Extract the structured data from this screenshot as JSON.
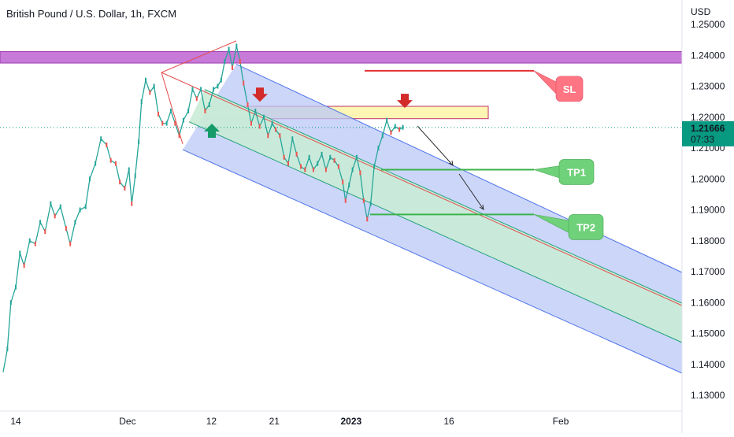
{
  "header": {
    "title": "British Pound / U.S. Dollar, 1h, FXCM"
  },
  "colors": {
    "up": "#26a69a",
    "down": "#ef5350",
    "channel_fill": "#b9c8f7",
    "inner_fill": "#c9ecd6",
    "resistance": "#c77ad8",
    "supply": "#fbf3a6",
    "sl": "#ff7583",
    "tp": "#6fd17a",
    "price_tag": "#089981"
  },
  "chart_data": {
    "type": "line",
    "title": "British Pound / U.S. Dollar, 1h, FXCM",
    "y_unit": "USD",
    "ylim": [
      1.1275,
      1.2525
    ],
    "yticks": [
      "1.25000",
      "1.24000",
      "1.23000",
      "1.22000",
      "1.21000",
      "1.20000",
      "1.19000",
      "1.18000",
      "1.17000",
      "1.16000",
      "1.15000",
      "1.14000",
      "1.13000"
    ],
    "xticks": [
      "14",
      "Dec",
      "12",
      "21",
      "2023",
      "16",
      "Feb"
    ],
    "x_tick_days": [
      0,
      16,
      28,
      37,
      48,
      62,
      78
    ],
    "x_range_days": [
      -2,
      92
    ],
    "last_price": "1.21666",
    "countdown": "07:33",
    "series": [
      {
        "points": [
          [
            -1.8,
            1.1375
          ],
          [
            -1.2,
            1.145
          ],
          [
            -0.7,
            1.16
          ],
          [
            0,
            1.165
          ],
          [
            0.6,
            1.176
          ],
          [
            1.2,
            1.172
          ],
          [
            2,
            1.18
          ],
          [
            2.8,
            1.179
          ],
          [
            3.5,
            1.186
          ],
          [
            4.2,
            1.183
          ],
          [
            5,
            1.192
          ],
          [
            5.6,
            1.188
          ],
          [
            6.4,
            1.191
          ],
          [
            7.2,
            1.184
          ],
          [
            7.8,
            1.179
          ],
          [
            8.5,
            1.186
          ],
          [
            9.2,
            1.19
          ],
          [
            10,
            1.191
          ],
          [
            10.6,
            1.2
          ],
          [
            11.4,
            1.205
          ],
          [
            12.2,
            1.213
          ],
          [
            13,
            1.211
          ],
          [
            13.6,
            1.206
          ],
          [
            14.3,
            1.205
          ],
          [
            14.9,
            1.199
          ],
          [
            15.6,
            1.197
          ],
          [
            16.2,
            1.203
          ],
          [
            16.6,
            1.192
          ],
          [
            17.1,
            1.201
          ],
          [
            17.6,
            1.212
          ],
          [
            18,
            1.225
          ],
          [
            18.6,
            1.232
          ],
          [
            19.2,
            1.228
          ],
          [
            19.8,
            1.23
          ],
          [
            20.4,
            1.221
          ],
          [
            21,
            1.218
          ],
          [
            21.6,
            1.218
          ],
          [
            22.2,
            1.222
          ],
          [
            22.8,
            1.218
          ],
          [
            23.4,
            1.214
          ],
          [
            24,
            1.219
          ],
          [
            24.7,
            1.222
          ],
          [
            25.3,
            1.229
          ],
          [
            25.9,
            1.226
          ],
          [
            26.5,
            1.229
          ],
          [
            27.1,
            1.222
          ],
          [
            27.7,
            1.224
          ],
          [
            28.3,
            1.229
          ],
          [
            28.9,
            1.23
          ],
          [
            29.4,
            1.232
          ],
          [
            29.9,
            1.238
          ],
          [
            30.5,
            1.242
          ],
          [
            31,
            1.236
          ],
          [
            31.6,
            1.243
          ],
          [
            32.1,
            1.238
          ],
          [
            32.6,
            1.231
          ],
          [
            33.2,
            1.224
          ],
          [
            33.7,
            1.218
          ],
          [
            34.3,
            1.222
          ],
          [
            34.9,
            1.217
          ],
          [
            35.5,
            1.22
          ],
          [
            36.1,
            1.214
          ],
          [
            36.7,
            1.218
          ],
          [
            37.2,
            1.216
          ],
          [
            37.8,
            1.214
          ],
          [
            38.4,
            1.207
          ],
          [
            39,
            1.205
          ],
          [
            39.6,
            1.213
          ],
          [
            40.2,
            1.208
          ],
          [
            40.8,
            1.204
          ],
          [
            41.4,
            1.203
          ],
          [
            42,
            1.207
          ],
          [
            42.6,
            1.203
          ],
          [
            43.2,
            1.205
          ],
          [
            43.8,
            1.208
          ],
          [
            44.4,
            1.203
          ],
          [
            45,
            1.207
          ],
          [
            45.6,
            1.206
          ],
          [
            46.2,
            1.204
          ],
          [
            46.8,
            1.199
          ],
          [
            47.2,
            1.193
          ],
          [
            47.7,
            1.198
          ],
          [
            48.2,
            1.203
          ],
          [
            48.8,
            1.207
          ],
          [
            49.3,
            1.202
          ],
          [
            49.8,
            1.193
          ],
          [
            50.3,
            1.187
          ],
          [
            50.8,
            1.192
          ],
          [
            51.3,
            1.204
          ],
          [
            51.9,
            1.21
          ],
          [
            52.5,
            1.214
          ],
          [
            53.1,
            1.219
          ],
          [
            53.7,
            1.215
          ],
          [
            54.3,
            1.217
          ],
          [
            54.9,
            1.216
          ],
          [
            55.4,
            1.2167
          ]
        ]
      }
    ],
    "annotations": [
      {
        "type": "label",
        "text": "SL",
        "price": 1.235
      },
      {
        "type": "label",
        "text": "TP1",
        "price": 1.203
      },
      {
        "type": "label",
        "text": "TP2",
        "price": 1.1885
      }
    ]
  }
}
